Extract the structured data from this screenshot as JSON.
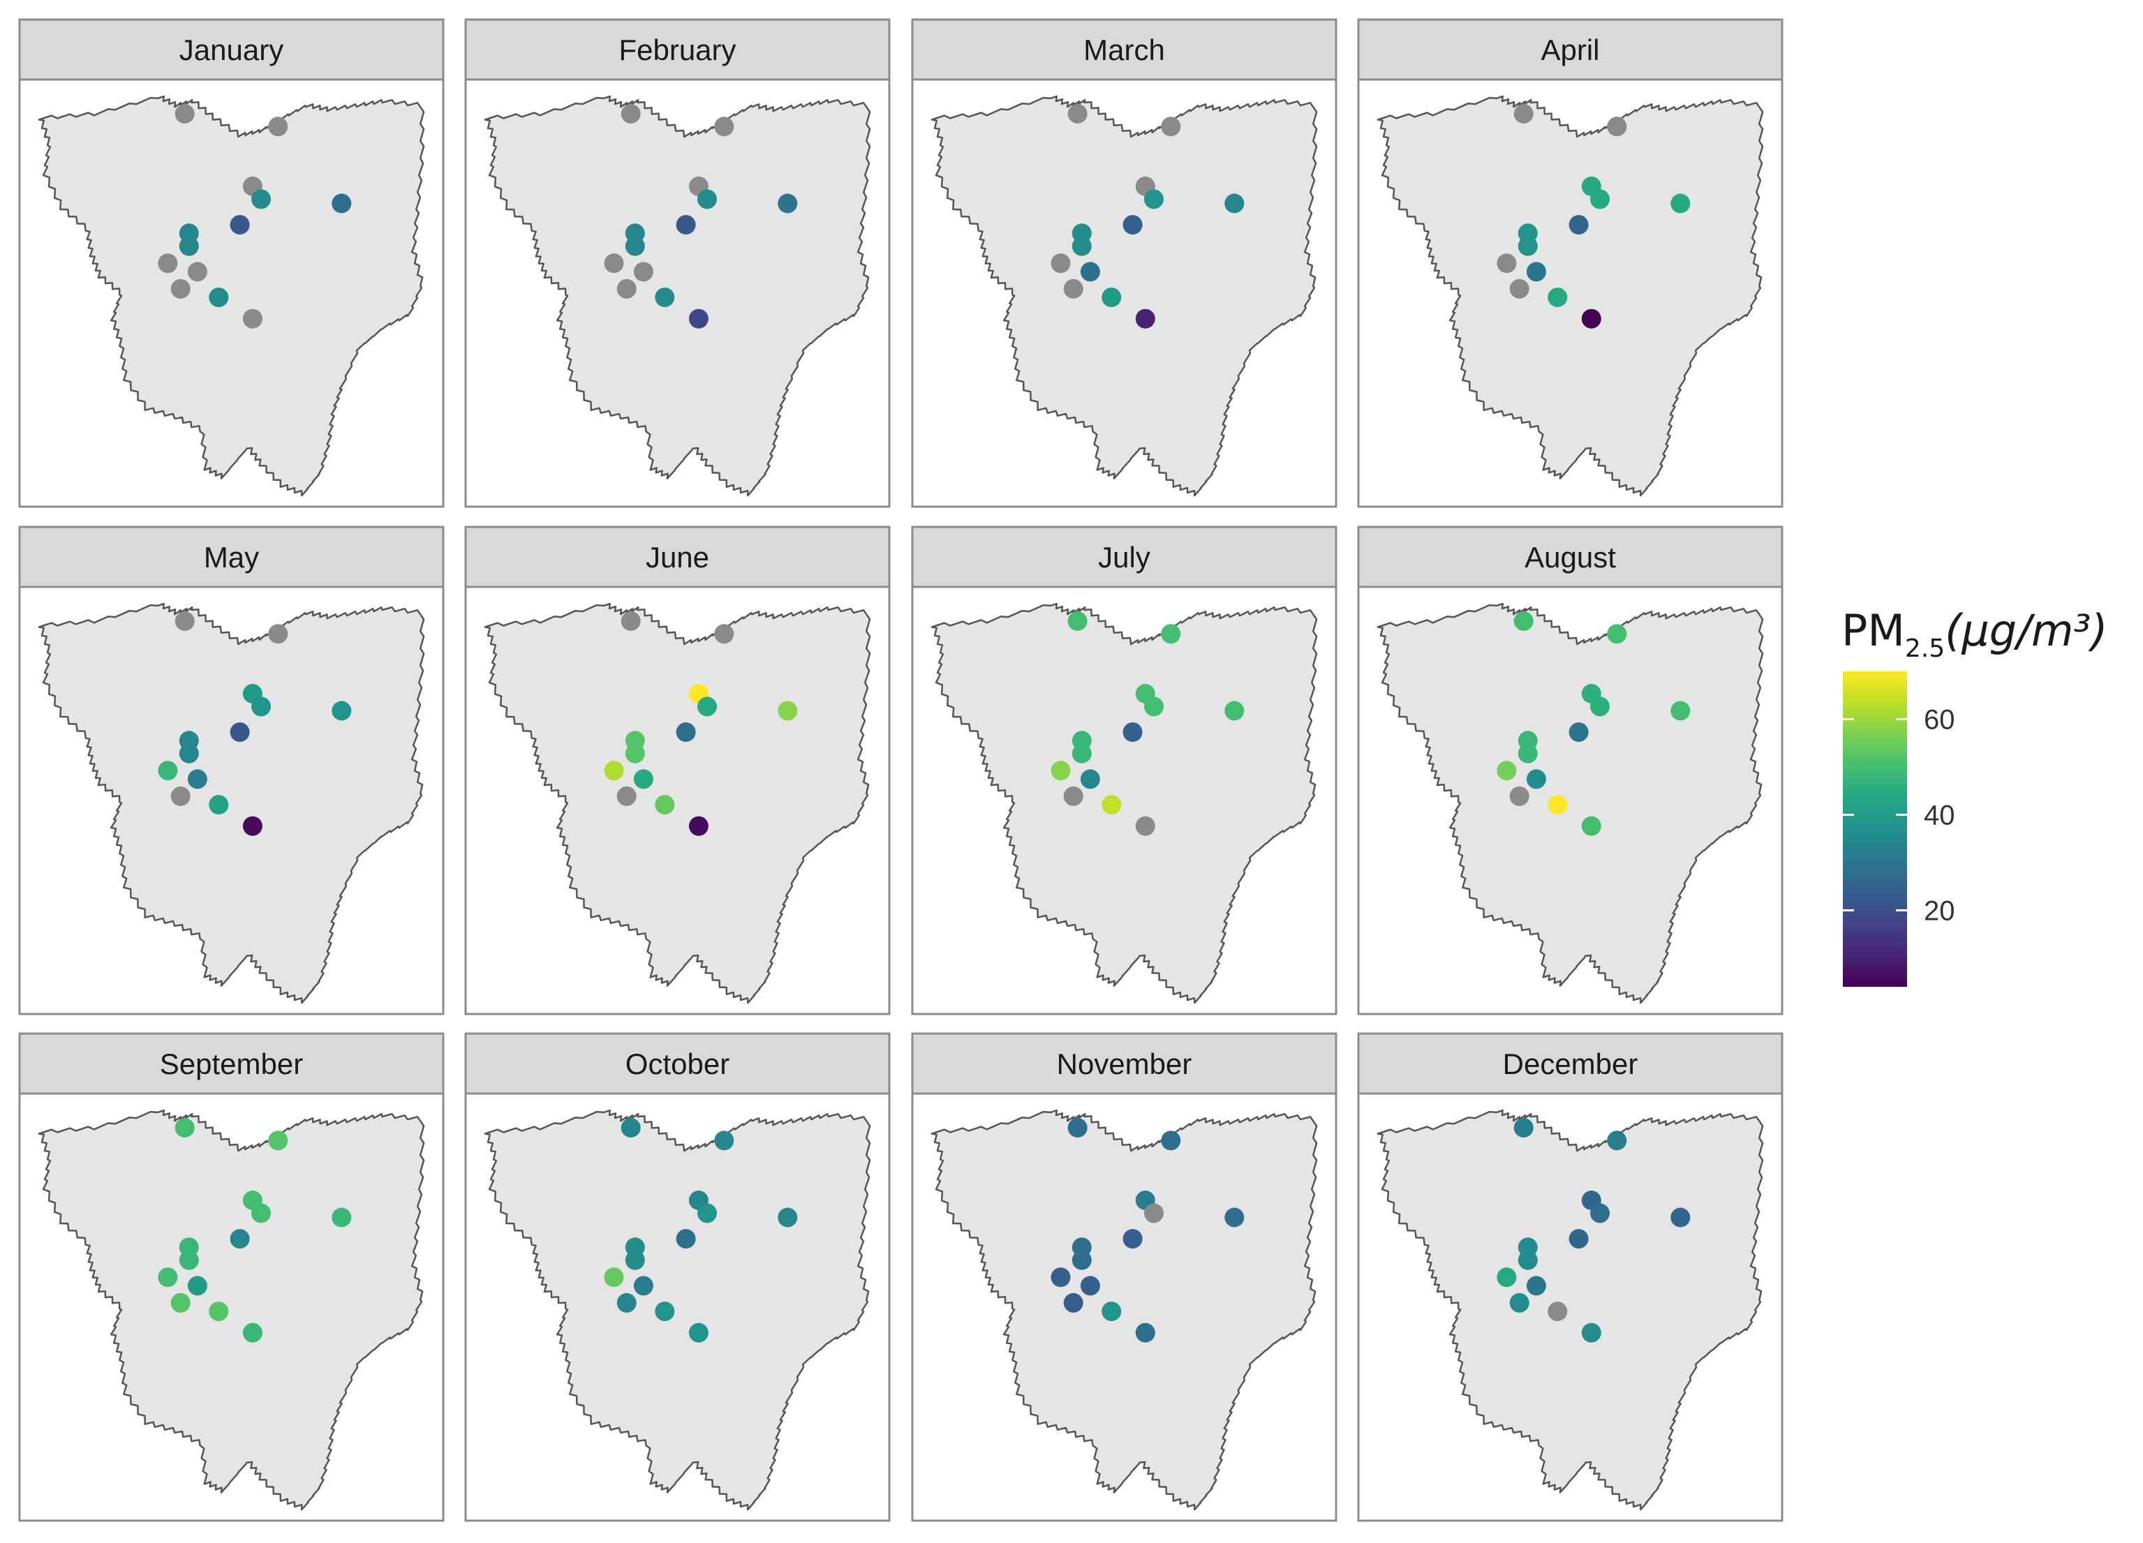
{
  "legend": {
    "title_main": "PM",
    "title_sub": "2.5",
    "title_unit": "(μg/m³)",
    "min": 4,
    "max": 70,
    "ticks": [
      {
        "value": 20,
        "label": "20"
      },
      {
        "value": 40,
        "label": "40"
      },
      {
        "value": 60,
        "label": "60"
      }
    ],
    "colormap": "viridis",
    "na_color": "#8a8a8a"
  },
  "stations": [
    {
      "id": "s1",
      "lon": 0.39,
      "lat": 0.08
    },
    {
      "id": "s2",
      "lon": 0.61,
      "lat": 0.11
    },
    {
      "id": "s3",
      "lon": 0.55,
      "lat": 0.25
    },
    {
      "id": "s4",
      "lon": 0.57,
      "lat": 0.28
    },
    {
      "id": "s5",
      "lon": 0.76,
      "lat": 0.29
    },
    {
      "id": "s6",
      "lon": 0.52,
      "lat": 0.34
    },
    {
      "id": "s7",
      "lon": 0.4,
      "lat": 0.36
    },
    {
      "id": "s8",
      "lon": 0.4,
      "lat": 0.39
    },
    {
      "id": "s9",
      "lon": 0.35,
      "lat": 0.43
    },
    {
      "id": "s10",
      "lon": 0.42,
      "lat": 0.45
    },
    {
      "id": "s11",
      "lon": 0.38,
      "lat": 0.49
    },
    {
      "id": "s12",
      "lon": 0.47,
      "lat": 0.51
    },
    {
      "id": "s13",
      "lon": 0.55,
      "lat": 0.56
    }
  ],
  "panels": [
    {
      "month": "January",
      "values": [
        null,
        null,
        null,
        36,
        28,
        22,
        34,
        34,
        null,
        null,
        null,
        36,
        null
      ]
    },
    {
      "month": "February",
      "values": [
        null,
        null,
        null,
        36,
        30,
        22,
        34,
        34,
        null,
        null,
        null,
        36,
        18
      ]
    },
    {
      "month": "March",
      "values": [
        null,
        null,
        null,
        38,
        34,
        24,
        36,
        36,
        null,
        28,
        null,
        40,
        10
      ]
    },
    {
      "month": "April",
      "values": [
        null,
        null,
        44,
        44,
        44,
        26,
        38,
        38,
        null,
        30,
        null,
        44,
        4
      ]
    },
    {
      "month": "May",
      "values": [
        null,
        null,
        40,
        38,
        38,
        22,
        34,
        34,
        48,
        32,
        null,
        42,
        6
      ]
    },
    {
      "month": "June",
      "values": [
        null,
        null,
        70,
        44,
        58,
        28,
        52,
        52,
        62,
        44,
        null,
        54,
        6
      ]
    },
    {
      "month": "July",
      "values": [
        50,
        50,
        50,
        50,
        50,
        24,
        48,
        48,
        58,
        34,
        null,
        64,
        null
      ]
    },
    {
      "month": "August",
      "values": [
        50,
        50,
        46,
        46,
        50,
        30,
        48,
        48,
        56,
        36,
        null,
        70,
        50
      ]
    },
    {
      "month": "September",
      "values": [
        50,
        52,
        50,
        50,
        48,
        34,
        48,
        48,
        50,
        40,
        52,
        52,
        48
      ]
    },
    {
      "month": "October",
      "values": [
        34,
        34,
        34,
        38,
        34,
        28,
        36,
        36,
        54,
        32,
        34,
        38,
        38
      ]
    },
    {
      "month": "November",
      "values": [
        28,
        28,
        32,
        null,
        28,
        24,
        28,
        28,
        24,
        24,
        24,
        38,
        28
      ]
    },
    {
      "month": "December",
      "values": [
        32,
        32,
        26,
        28,
        26,
        26,
        36,
        36,
        44,
        30,
        36,
        null,
        36
      ]
    }
  ]
}
